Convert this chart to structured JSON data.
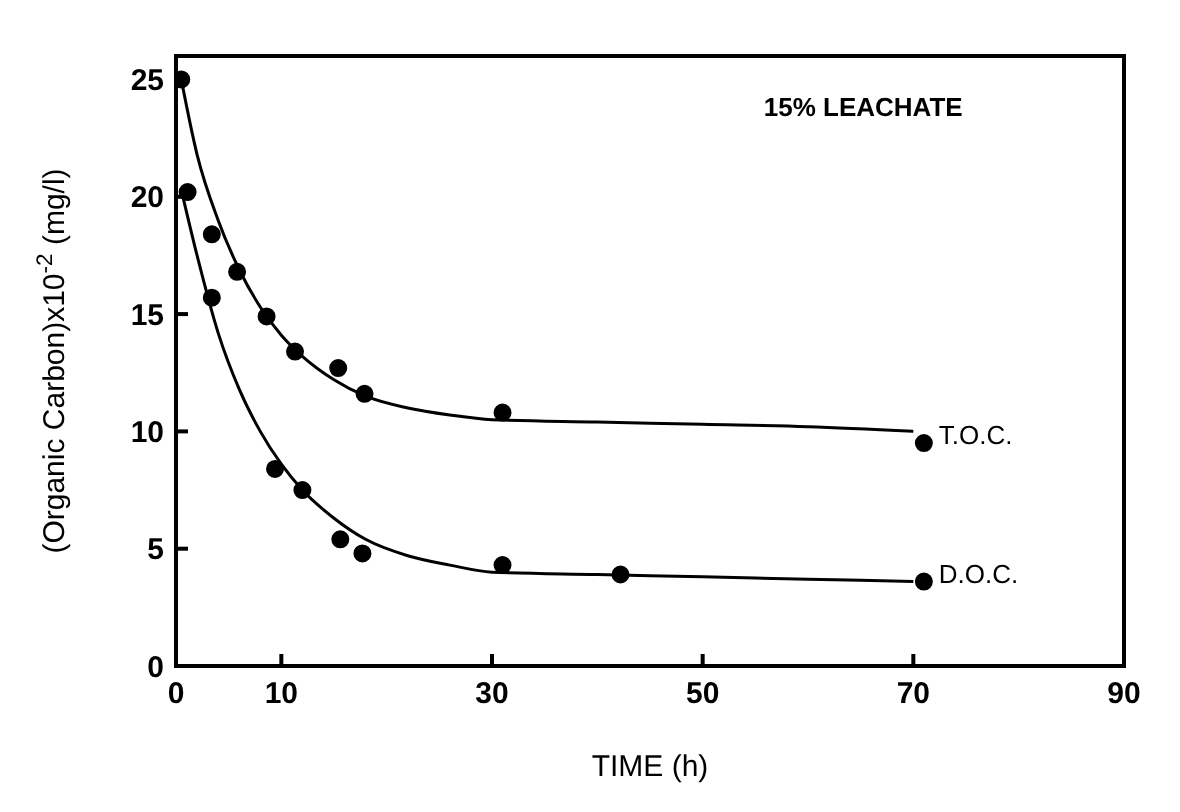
{
  "chart_data": {
    "type": "scatter",
    "xlabel": "TIME (h)",
    "ylabel": "(Organic Carbon)x10$^{-2}$ (mg/l)",
    "annotations": [
      "15% LEACHATE"
    ],
    "xlim": [
      0,
      90
    ],
    "xticks": [
      0,
      10,
      30,
      50,
      70,
      90
    ],
    "ylim": [
      0,
      26
    ],
    "yticks": [
      0,
      5,
      10,
      15,
      20,
      25
    ],
    "marker": "circle",
    "series": [
      {
        "name": "T.O.C.",
        "color": "#000000",
        "x": [
          0.5,
          3.4,
          5.8,
          8.6,
          11.3,
          15.4,
          17.9,
          31,
          71
        ],
        "values": [
          25,
          18.4,
          16.8,
          14.9,
          13.4,
          12.7,
          11.6,
          10.8,
          9.5
        ]
      },
      {
        "name": "D.O.C.",
        "color": "#000000",
        "x": [
          1.1,
          3.4,
          9.4,
          12.0,
          15.6,
          17.7,
          31,
          42.2,
          71
        ],
        "values": [
          20.2,
          15.7,
          8.4,
          7.5,
          5.4,
          4.8,
          4.3,
          3.9,
          3.6
        ]
      },
      {
        "type": "line",
        "color": "#000000",
        "marker": "none",
        "x": [
          0.5,
          2,
          4,
          6,
          8,
          10,
          12,
          15,
          18,
          22,
          26,
          30,
          40,
          50,
          60,
          70
        ],
        "values": [
          25,
          21.8,
          19.0,
          16.9,
          15.3,
          14.1,
          13.2,
          12.2,
          11.5,
          11.0,
          10.7,
          10.5,
          10.4,
          10.3,
          10.2,
          10.0
        ]
      },
      {
        "type": "line",
        "color": "#000000",
        "marker": "none",
        "x": [
          0.5,
          2,
          4,
          6,
          8,
          10,
          12,
          15,
          18,
          22,
          26,
          30,
          40,
          50,
          60,
          70
        ],
        "values": [
          20.3,
          17.5,
          14.2,
          11.8,
          10.0,
          8.6,
          7.5,
          6.3,
          5.4,
          4.7,
          4.3,
          4.0,
          3.9,
          3.8,
          3.7,
          3.6
        ]
      }
    ]
  }
}
